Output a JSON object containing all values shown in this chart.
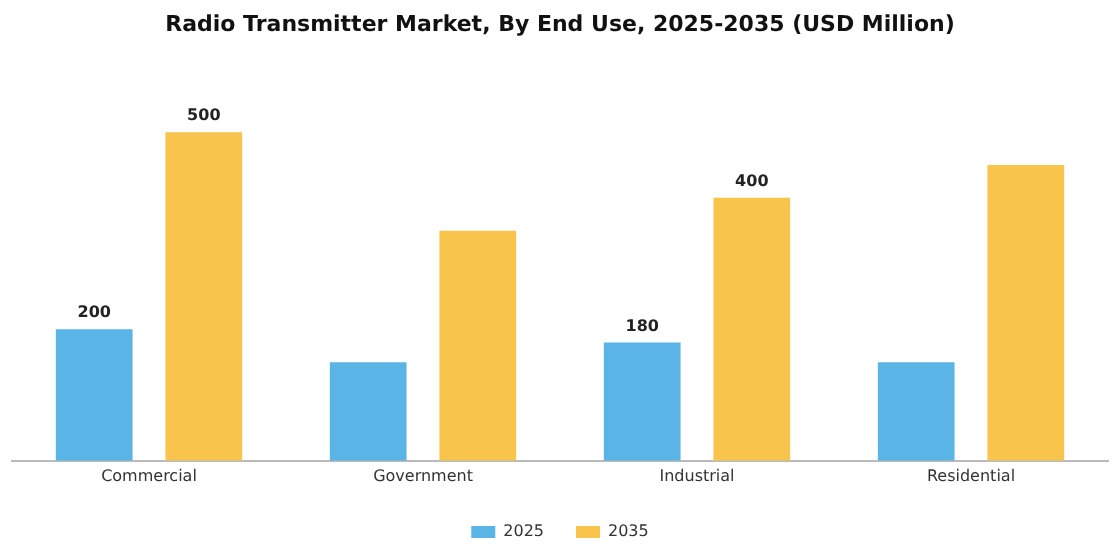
{
  "chart_data": {
    "type": "bar",
    "title": "Radio Transmitter Market, By End Use, 2025-2035 (USD Million)",
    "categories": [
      "Commercial",
      "Government",
      "Industrial",
      "Residential"
    ],
    "series": [
      {
        "name": "2025",
        "color": "#5ab4e5",
        "values": [
          200,
          150,
          180,
          150
        ],
        "value_labels": [
          "200",
          null,
          "180",
          null
        ]
      },
      {
        "name": "2035",
        "color": "#f8c44c",
        "values": [
          500,
          350,
          400,
          450
        ],
        "value_labels": [
          "500",
          null,
          "400",
          null
        ]
      }
    ],
    "legend": "bottom",
    "grid": false,
    "tick_labels": "x"
  }
}
